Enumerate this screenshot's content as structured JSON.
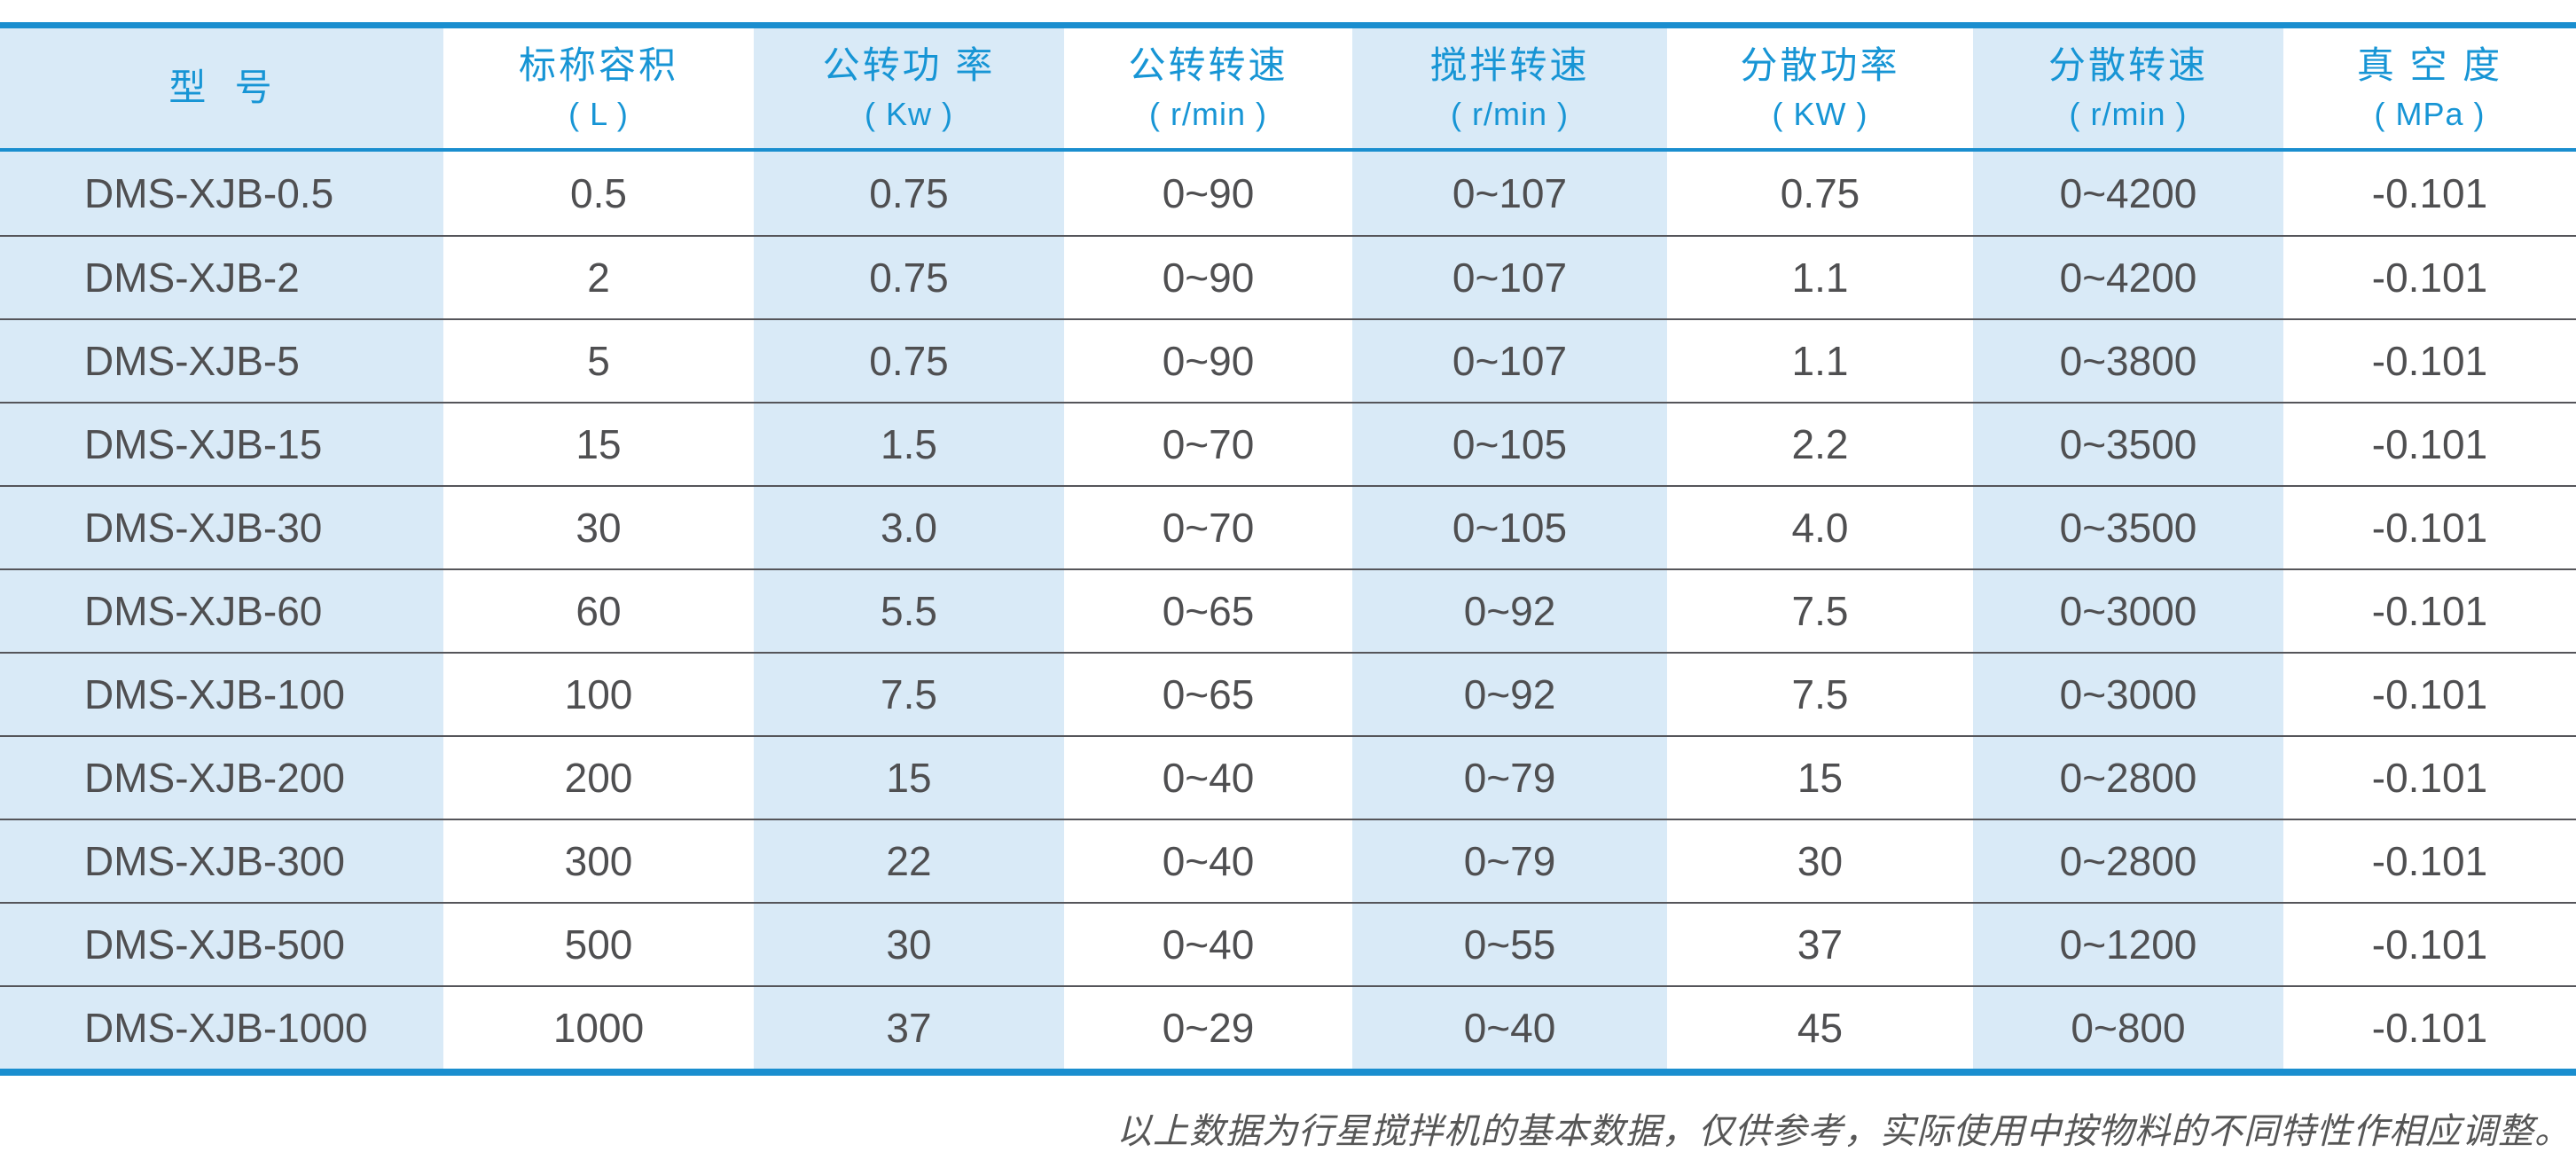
{
  "theme": {
    "page_bg": "#ffffff",
    "accent": "#1a8ecf",
    "header_text": "#1795d5",
    "stripe": "#d9eaf7",
    "body_text": "#4f4f51",
    "divider": "#55555a",
    "footnote_text": "#565656"
  },
  "table": {
    "columns": [
      {
        "title": "型  号",
        "unit": ""
      },
      {
        "title": "标称容积",
        "unit": "( L )"
      },
      {
        "title": "公转功 率",
        "unit": "( Kw )"
      },
      {
        "title": "公转转速",
        "unit": "( r/min )"
      },
      {
        "title": "搅拌转速",
        "unit": "( r/min )"
      },
      {
        "title": "分散功率",
        "unit": "( KW )"
      },
      {
        "title": "分散转速",
        "unit": "( r/min )"
      },
      {
        "title": "真 空 度",
        "unit": "( MPa )"
      }
    ],
    "rows": [
      [
        "DMS-XJB-0.5",
        "0.5",
        "0.75",
        "0~90",
        "0~107",
        "0.75",
        "0~4200",
        "-0.101"
      ],
      [
        "DMS-XJB-2",
        "2",
        "0.75",
        "0~90",
        "0~107",
        "1.1",
        "0~4200",
        "-0.101"
      ],
      [
        "DMS-XJB-5",
        "5",
        "0.75",
        "0~90",
        "0~107",
        "1.1",
        "0~3800",
        "-0.101"
      ],
      [
        "DMS-XJB-15",
        "15",
        "1.5",
        "0~70",
        "0~105",
        "2.2",
        "0~3500",
        "-0.101"
      ],
      [
        "DMS-XJB-30",
        "30",
        "3.0",
        "0~70",
        "0~105",
        "4.0",
        "0~3500",
        "-0.101"
      ],
      [
        "DMS-XJB-60",
        "60",
        "5.5",
        "0~65",
        "0~92",
        "7.5",
        "0~3000",
        "-0.101"
      ],
      [
        "DMS-XJB-100",
        "100",
        "7.5",
        "0~65",
        "0~92",
        "7.5",
        "0~3000",
        "-0.101"
      ],
      [
        "DMS-XJB-200",
        "200",
        "15",
        "0~40",
        "0~79",
        "15",
        "0~2800",
        "-0.101"
      ],
      [
        "DMS-XJB-300",
        "300",
        "22",
        "0~40",
        "0~79",
        "30",
        "0~2800",
        "-0.101"
      ],
      [
        "DMS-XJB-500",
        "500",
        "30",
        "0~40",
        "0~55",
        "37",
        "0~1200",
        "-0.101"
      ],
      [
        "DMS-XJB-1000",
        "1000",
        "37",
        "0~29",
        "0~40",
        "45",
        "0~800",
        "-0.101"
      ]
    ]
  },
  "footnote": {
    "text": "以上数据为行星搅拌机的基本数据，仅供参考，实际使用中按物料的不同特性作相应调整。"
  }
}
